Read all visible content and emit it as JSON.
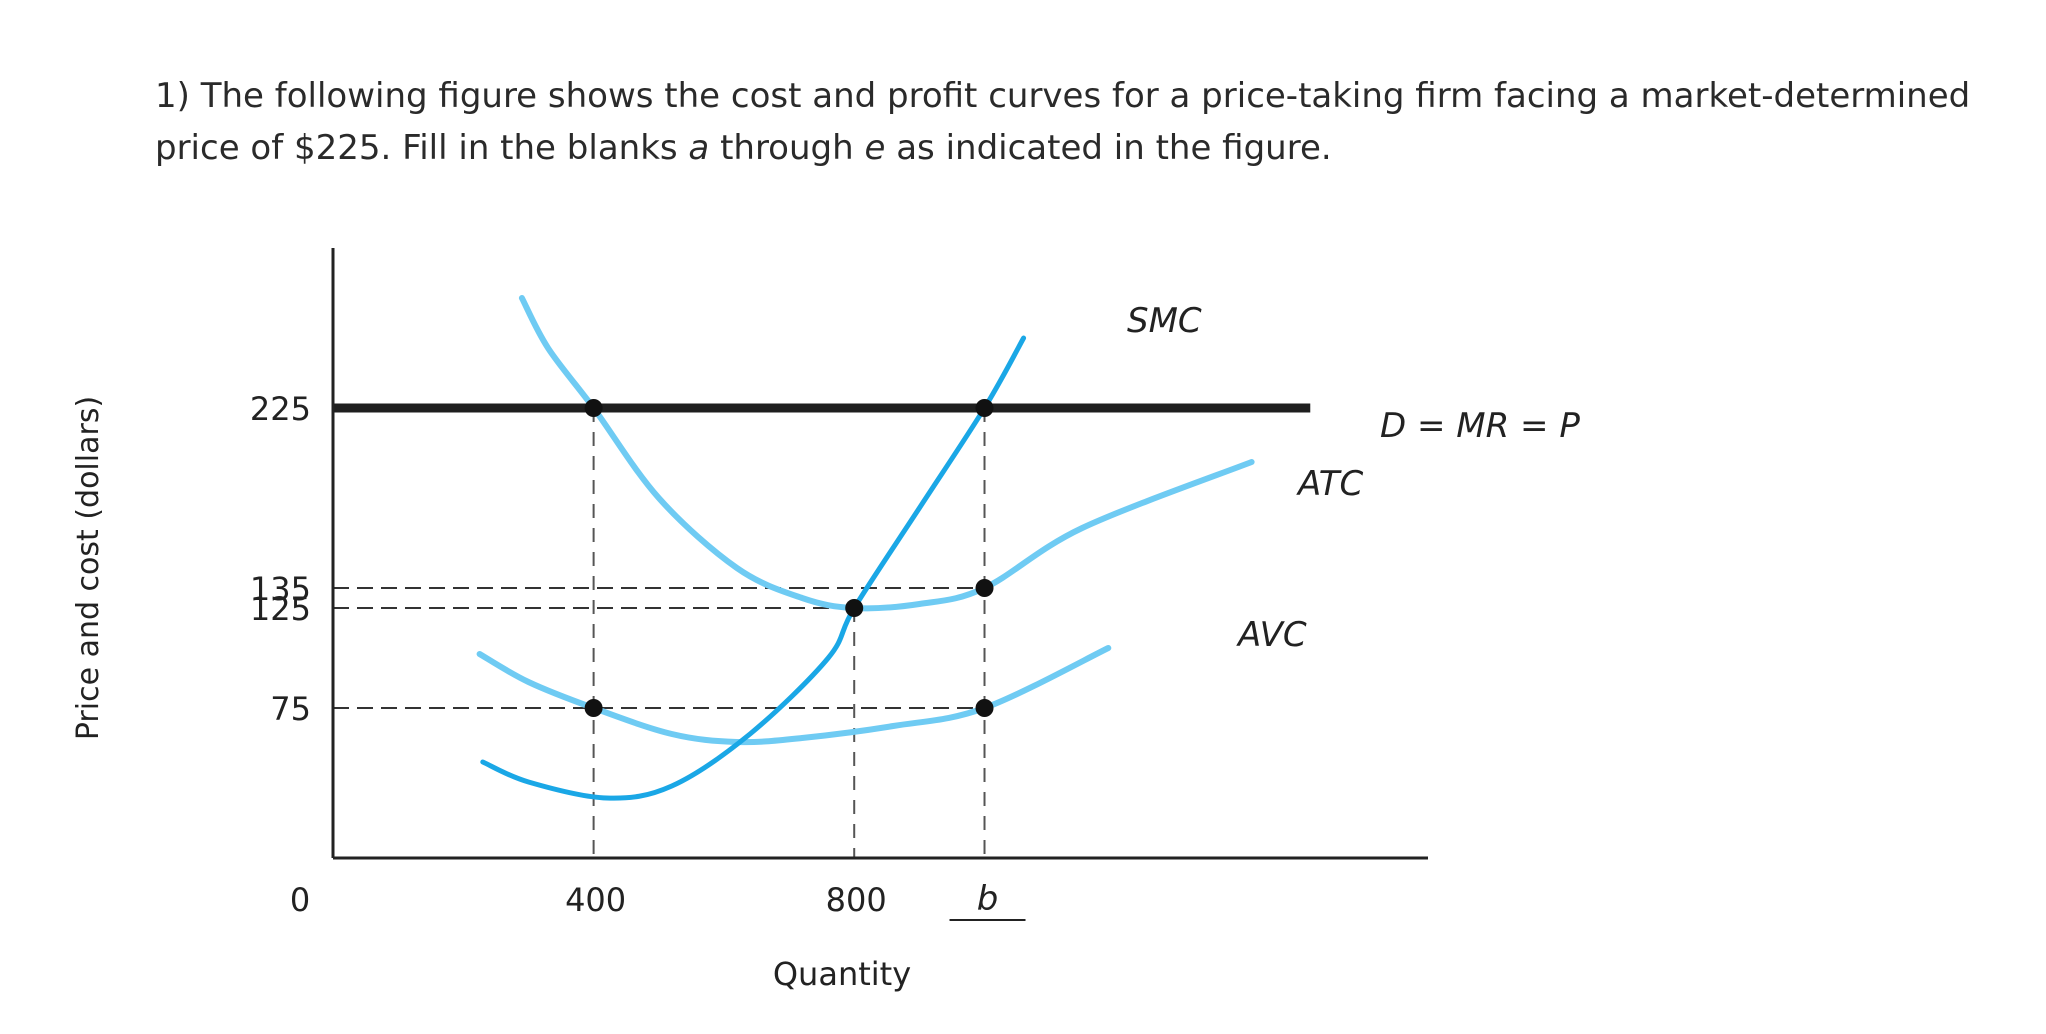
{
  "question": {
    "line1": "1) The following figure shows the cost and profit curves for a price-taking firm facing a market-determined",
    "line2_a": "price of $225. Fill in the blanks ",
    "blank_a": "a",
    "line2_b": " through ",
    "blank_e": "e",
    "line2_c": " as indicated in the figure."
  },
  "chart_data": {
    "type": "line",
    "xlabel": "Quantity",
    "ylabel": "Price and cost (dollars)",
    "origin_label": "0",
    "xlim": [
      0,
      1650
    ],
    "ylim": [
      0,
      300
    ],
    "x_ticks": [
      {
        "value": 400,
        "label": "400"
      },
      {
        "value": 800,
        "label": "800"
      }
    ],
    "x_blank": {
      "value": 1000,
      "label": "b"
    },
    "y_ticks": [
      {
        "value": 225,
        "label": "225"
      },
      {
        "value": 135,
        "label": "135"
      },
      {
        "value": 125,
        "label": "125"
      },
      {
        "value": 75,
        "label": "75"
      }
    ],
    "colors": {
      "demand": "#1f1f1f",
      "smc": "#1aa7e6",
      "atc": "#6fcbf3",
      "avc": "#6fcbf3",
      "guide": "#333333",
      "point": "#111111"
    },
    "series": [
      {
        "name": "D = MR = P",
        "key": "demand",
        "points": [
          [
            0,
            225
          ],
          [
            1500,
            225
          ]
        ]
      },
      {
        "name": "SMC",
        "key": "smc",
        "points": [
          [
            230,
            48
          ],
          [
            300,
            38
          ],
          [
            420,
            30
          ],
          [
            520,
            36
          ],
          [
            640,
            62
          ],
          [
            760,
            100
          ],
          [
            800,
            125
          ],
          [
            900,
            175
          ],
          [
            1000,
            225
          ],
          [
            1060,
            260
          ]
        ]
      },
      {
        "name": "ATC",
        "key": "atc",
        "points": [
          [
            290,
            280
          ],
          [
            330,
            255
          ],
          [
            400,
            225
          ],
          [
            500,
            180
          ],
          [
            620,
            145
          ],
          [
            720,
            130
          ],
          [
            800,
            125
          ],
          [
            900,
            127
          ],
          [
            1000,
            135
          ],
          [
            1150,
            165
          ],
          [
            1410,
            198
          ]
        ]
      },
      {
        "name": "AVC",
        "key": "avc",
        "points": [
          [
            225,
            102
          ],
          [
            300,
            88
          ],
          [
            400,
            75
          ],
          [
            520,
            62
          ],
          [
            620,
            58
          ],
          [
            720,
            60
          ],
          [
            860,
            66
          ],
          [
            1000,
            75
          ],
          [
            1190,
            105
          ]
        ]
      }
    ],
    "points": [
      [
        400,
        225
      ],
      [
        1000,
        225
      ],
      [
        800,
        125
      ],
      [
        1000,
        135
      ],
      [
        400,
        75
      ],
      [
        1000,
        75
      ]
    ],
    "h_guides": [
      [
        135,
        1000
      ],
      [
        125,
        800
      ],
      [
        75,
        1000
      ]
    ],
    "v_guides": [
      [
        400,
        225
      ],
      [
        800,
        125
      ],
      [
        1000,
        225
      ]
    ]
  }
}
